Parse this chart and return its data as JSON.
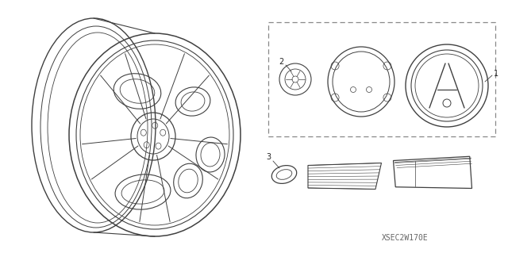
{
  "bg_color": "#ffffff",
  "line_color": "#404040",
  "label_color": "#222222",
  "figure_width": 6.4,
  "figure_height": 3.19,
  "watermark": "XSEC2W170E",
  "watermark_fontsize": 7
}
